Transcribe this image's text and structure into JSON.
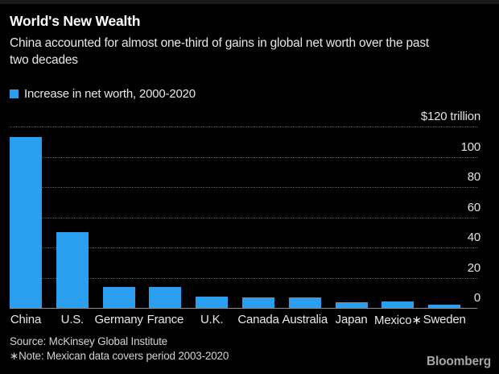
{
  "header": {
    "title": "World's New Wealth",
    "subtitle": "China accounted for almost one-third of gains in global net worth over the past two decades"
  },
  "legend": {
    "label": "Increase in net worth, 2000-2020",
    "swatch_color": "#2a9fef"
  },
  "chart_data": {
    "type": "bar",
    "categories": [
      "China",
      "U.S.",
      "Germany",
      "France",
      "U.K.",
      "Canada",
      "Australia",
      "Japan",
      "Mexico∗",
      "Sweden"
    ],
    "values": [
      113,
      50,
      14,
      14,
      7.5,
      7,
      7,
      4,
      4.5,
      2
    ],
    "title": "World's New Wealth",
    "xlabel": "",
    "ylabel": "$ trillion",
    "ylim": [
      0,
      120
    ],
    "yticks": [
      0,
      20,
      40,
      60,
      80,
      100,
      120
    ],
    "ytick_top_label": "$120 trillion",
    "grid": "horizontal-dotted",
    "legend_position": "top-left",
    "legend_entries": [
      "Increase in net worth, 2000-2020"
    ],
    "bar_color": "#2a9fef"
  },
  "footer": {
    "source": "Source: McKinsey Global Institute",
    "note": "∗Note: Mexican data covers period 2003-2020",
    "brand": "Bloomberg"
  },
  "colors": {
    "background": "#000000",
    "bar_blue": "#2a9fef",
    "gridline": "#5e5e5e",
    "baseline": "#8e8e8e",
    "title_text": "#ffffff",
    "body_text": "#e8e8e8",
    "footer_text": "#d2d2d2",
    "brand_text": "#a6a6a6"
  }
}
